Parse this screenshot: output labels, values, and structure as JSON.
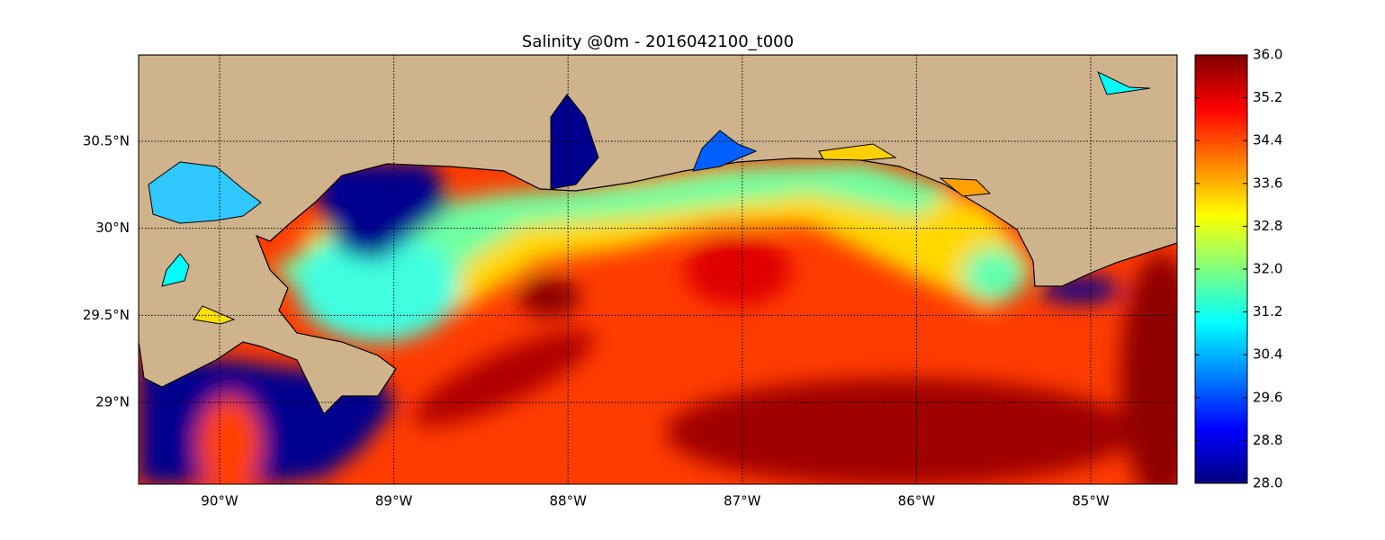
{
  "title": "Salinity @0m - 2016042100_t000",
  "xlim": [
    -90.465,
    -84.504
  ],
  "ylim": [
    28.53,
    30.996
  ],
  "xticks": [
    {
      "value": -90,
      "label": "90°W"
    },
    {
      "value": -89,
      "label": "89°W"
    },
    {
      "value": -88,
      "label": "88°W"
    },
    {
      "value": -87,
      "label": "87°W"
    },
    {
      "value": -86,
      "label": "86°W"
    },
    {
      "value": -85,
      "label": "85°W"
    }
  ],
  "yticks": [
    {
      "value": 29,
      "label": "29°N"
    },
    {
      "value": 29.5,
      "label": "29.5°N"
    },
    {
      "value": 30,
      "label": "30°N"
    },
    {
      "value": 30.5,
      "label": "30.5°N"
    }
  ],
  "grid": true,
  "colorbar": {
    "colormap": "jet",
    "lim": [
      28,
      36
    ],
    "ticks": [
      {
        "value": 28,
        "label": "28.0"
      },
      {
        "value": 28.8,
        "label": "28.8"
      },
      {
        "value": 29.6,
        "label": "29.6"
      },
      {
        "value": 30.4,
        "label": "30.4"
      },
      {
        "value": 31.2,
        "label": "31.2"
      },
      {
        "value": 32,
        "label": "32.0"
      },
      {
        "value": 32.8,
        "label": "32.8"
      },
      {
        "value": 33.6,
        "label": "33.6"
      },
      {
        "value": 34.4,
        "label": "34.4"
      },
      {
        "value": 35.2,
        "label": "35.2"
      },
      {
        "value": 36,
        "label": "36.0"
      }
    ]
  }
}
